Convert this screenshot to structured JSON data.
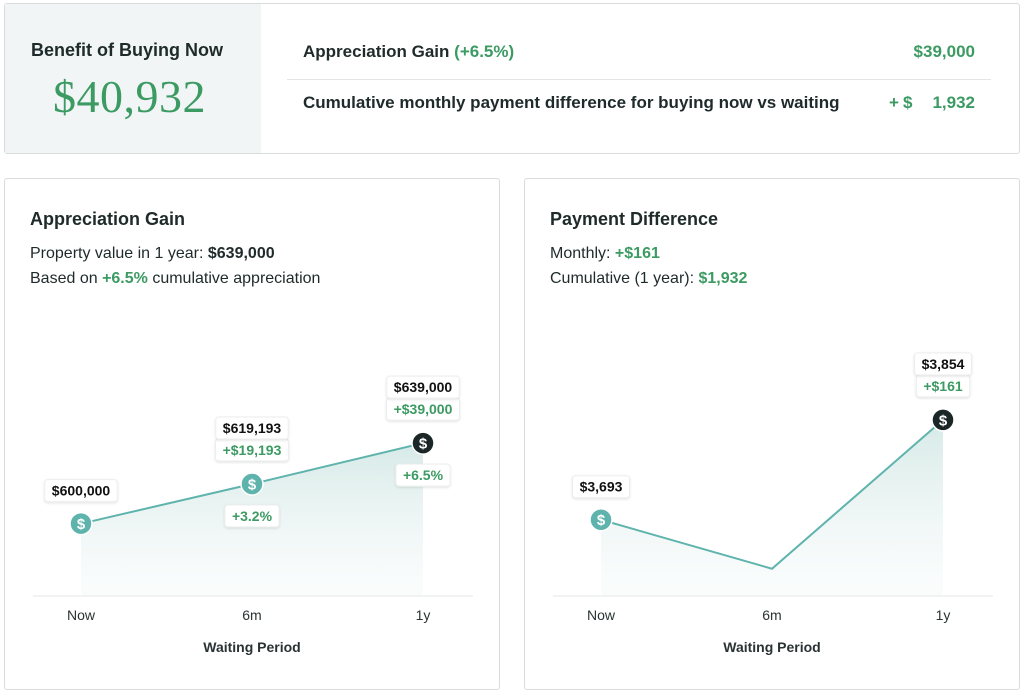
{
  "summary": {
    "benefit_label": "Benefit of Buying Now",
    "benefit_value": "$40,932",
    "row1": {
      "label": "Appreciation Gain",
      "pct": "(+6.5%)",
      "value": "$39,000"
    },
    "row2": {
      "label": "Cumulative monthly payment difference for buying now vs waiting",
      "plus": "+",
      "currency": "$",
      "amount": "1,932"
    }
  },
  "appreciation": {
    "title": "Appreciation Gain",
    "line1_prefix": "Property value in 1 year: ",
    "line1_value": "$639,000",
    "line2_prefix": "Based on ",
    "line2_pct": "+6.5%",
    "line2_suffix": " cumulative appreciation"
  },
  "payment": {
    "title": "Payment Difference",
    "line1_prefix": "Monthly: ",
    "line1_value": "+$161",
    "line2_prefix": "Cumulative (1 year): ",
    "line2_value": "$1,932"
  },
  "colors": {
    "accent": "#5fb3ad",
    "green": "#3c9a63",
    "dark": "#1b2626"
  },
  "chart_data": [
    {
      "type": "area",
      "categories": [
        "Now",
        "6m",
        "1y"
      ],
      "values": [
        600000,
        619193,
        639000
      ],
      "value_labels": [
        "$600,000",
        "$619,193",
        "$639,000"
      ],
      "gain_labels": [
        "",
        "+$19,193",
        "+$39,000"
      ],
      "pct_labels": [
        "",
        "+3.2%",
        "+6.5%"
      ],
      "marker_icons": [
        "dollar-icon",
        "dollar-icon",
        "dollar-icon"
      ],
      "xlabel": "Waiting Period",
      "ylim": [
        565000,
        670000
      ]
    },
    {
      "type": "area",
      "categories": [
        "Now",
        "6m",
        "1y"
      ],
      "values": [
        3693,
        3614,
        3854
      ],
      "value_labels": [
        "$3,693",
        "",
        "$3,854"
      ],
      "gain_labels": [
        "",
        "",
        "+$161"
      ],
      "marker_icons": [
        "dollar-icon",
        "",
        "dollar-icon"
      ],
      "xlabel": "Waiting Period",
      "ylim": [
        3570,
        3920
      ]
    }
  ]
}
